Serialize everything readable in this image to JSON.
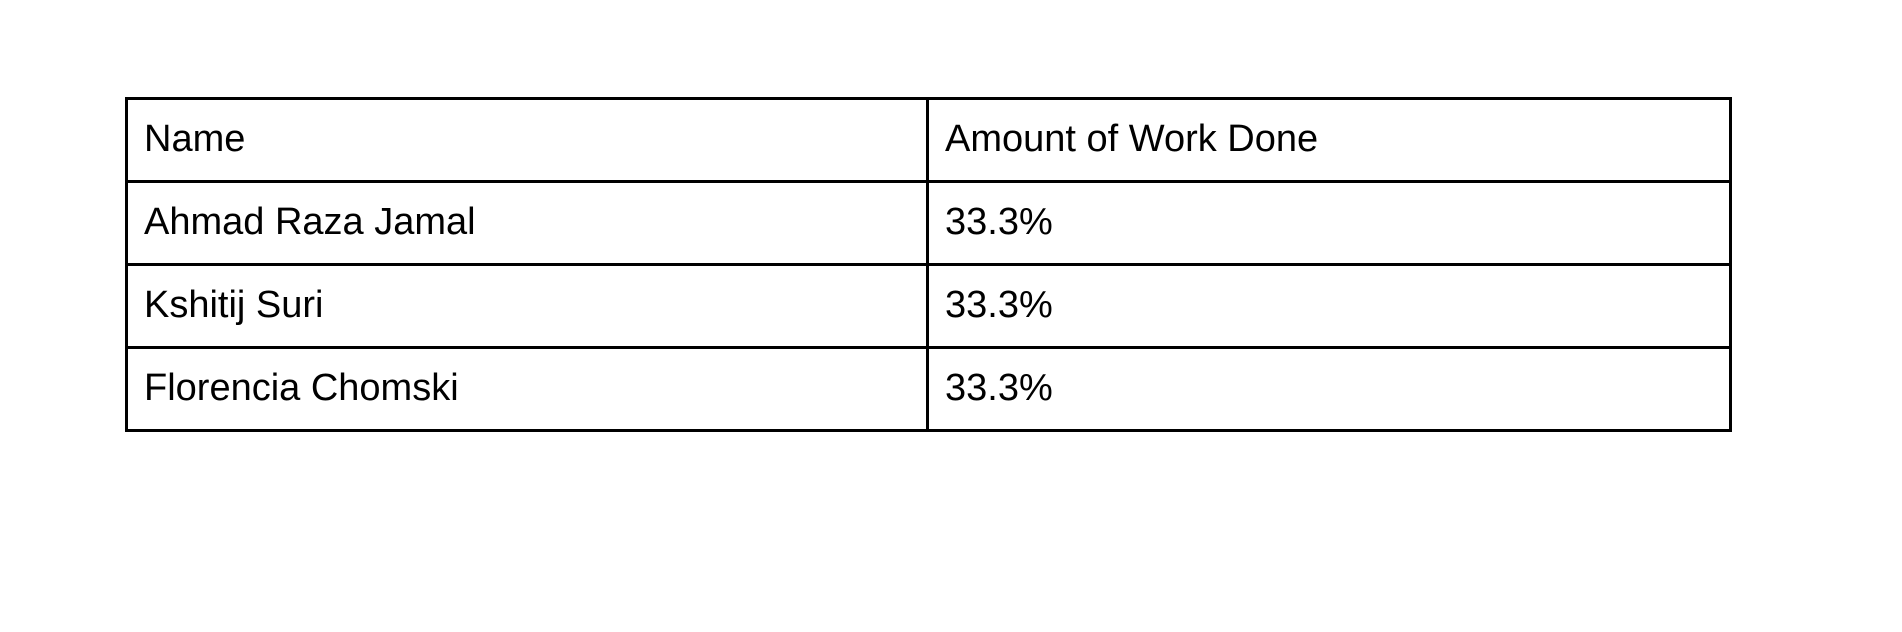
{
  "table": {
    "headers": [
      "Name",
      "Amount of Work Done"
    ],
    "rows": [
      [
        "Ahmad Raza Jamal",
        "33.3%"
      ],
      [
        "Kshitij Suri",
        "33.3%"
      ],
      [
        "Florencia Chomski",
        "33.3%"
      ]
    ]
  }
}
